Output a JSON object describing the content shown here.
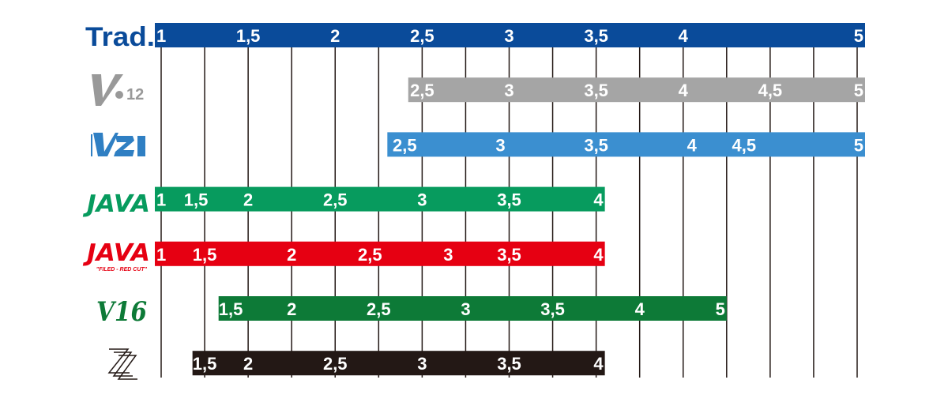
{
  "chart_data": {
    "type": "bar",
    "title": "",
    "xlabel": "",
    "ylabel": "",
    "xlim": [
      1,
      5
    ],
    "grid": true,
    "gridlines": [
      1,
      1.25,
      1.5,
      1.75,
      2,
      2.25,
      2.5,
      2.75,
      3,
      3.25,
      3.5,
      3.75,
      4,
      4.25,
      4.5,
      4.75,
      5
    ],
    "rows": [
      {
        "label": "Trad.",
        "color": "#0a4b9a",
        "range": [
          1,
          5
        ],
        "ticks": [
          {
            "v": 1,
            "t": "1"
          },
          {
            "v": 1.5,
            "t": "1,5"
          },
          {
            "v": 2,
            "t": "2"
          },
          {
            "v": 2.5,
            "t": "2,5"
          },
          {
            "v": 3,
            "t": "3"
          },
          {
            "v": 3.5,
            "t": "3,5"
          },
          {
            "v": 4,
            "t": "4"
          },
          {
            "v": 5,
            "t": "5"
          }
        ]
      },
      {
        "label": "V•12",
        "logo": "v12-logo",
        "color": "#a5a5a5",
        "range": [
          2.42,
          5
        ],
        "ticks": [
          {
            "v": 2.5,
            "t": "2,5"
          },
          {
            "v": 3,
            "t": "3"
          },
          {
            "v": 3.5,
            "t": "3,5"
          },
          {
            "v": 4,
            "t": "4"
          },
          {
            "v": 4.5,
            "t": "4,5"
          },
          {
            "v": 5,
            "t": "5"
          }
        ]
      },
      {
        "label": "V21",
        "logo": "v21-logo",
        "color": "#3b8fd0",
        "range": [
          2.3,
          5
        ],
        "ticks": [
          {
            "v": 2.4,
            "t": "2,5"
          },
          {
            "v": 2.95,
            "t": "3"
          },
          {
            "v": 3.5,
            "t": "3,5"
          },
          {
            "v": 4.05,
            "t": "4"
          },
          {
            "v": 4.35,
            "t": "4,5"
          },
          {
            "v": 5,
            "t": "5"
          }
        ]
      },
      {
        "label": "JAVA",
        "logo": "java-logo",
        "color": "#079b5e",
        "range": [
          1,
          3.55
        ],
        "ticks": [
          {
            "v": 1,
            "t": "1"
          },
          {
            "v": 1.2,
            "t": "1,5"
          },
          {
            "v": 1.5,
            "t": "2"
          },
          {
            "v": 2,
            "t": "2,5"
          },
          {
            "v": 2.5,
            "t": "3"
          },
          {
            "v": 3,
            "t": "3,5"
          },
          {
            "v": 3.5,
            "t": "4"
          }
        ]
      },
      {
        "label": "JAVA",
        "sublabel": "\"FILED - RED CUT\"",
        "logo": "java-red-cut-logo",
        "color": "#e60012",
        "range": [
          1,
          3.55
        ],
        "ticks": [
          {
            "v": 1,
            "t": "1"
          },
          {
            "v": 1.25,
            "t": "1,5"
          },
          {
            "v": 1.75,
            "t": "2"
          },
          {
            "v": 2.2,
            "t": "2,5"
          },
          {
            "v": 2.65,
            "t": "3"
          },
          {
            "v": 3,
            "t": "3,5"
          },
          {
            "v": 3.5,
            "t": "4"
          }
        ]
      },
      {
        "label": "V16",
        "logo": "v16-logo",
        "color": "#0d7a37",
        "range": [
          1.33,
          4.25
        ],
        "ticks": [
          {
            "v": 1.4,
            "t": "1,5"
          },
          {
            "v": 1.75,
            "t": "2"
          },
          {
            "v": 2.25,
            "t": "2,5"
          },
          {
            "v": 2.75,
            "t": "3"
          },
          {
            "v": 3.25,
            "t": "3,5"
          },
          {
            "v": 3.75,
            "t": "4"
          },
          {
            "v": 4.2,
            "t": "5"
          }
        ]
      },
      {
        "label": "ZZ",
        "logo": "zz-logo",
        "color": "#231815",
        "range": [
          1.18,
          3.55
        ],
        "ticks": [
          {
            "v": 1.25,
            "t": "1,5"
          },
          {
            "v": 1.5,
            "t": "2"
          },
          {
            "v": 2,
            "t": "2,5"
          },
          {
            "v": 2.5,
            "t": "3"
          },
          {
            "v": 3,
            "t": "3,5"
          },
          {
            "v": 3.5,
            "t": "4"
          }
        ]
      }
    ]
  }
}
